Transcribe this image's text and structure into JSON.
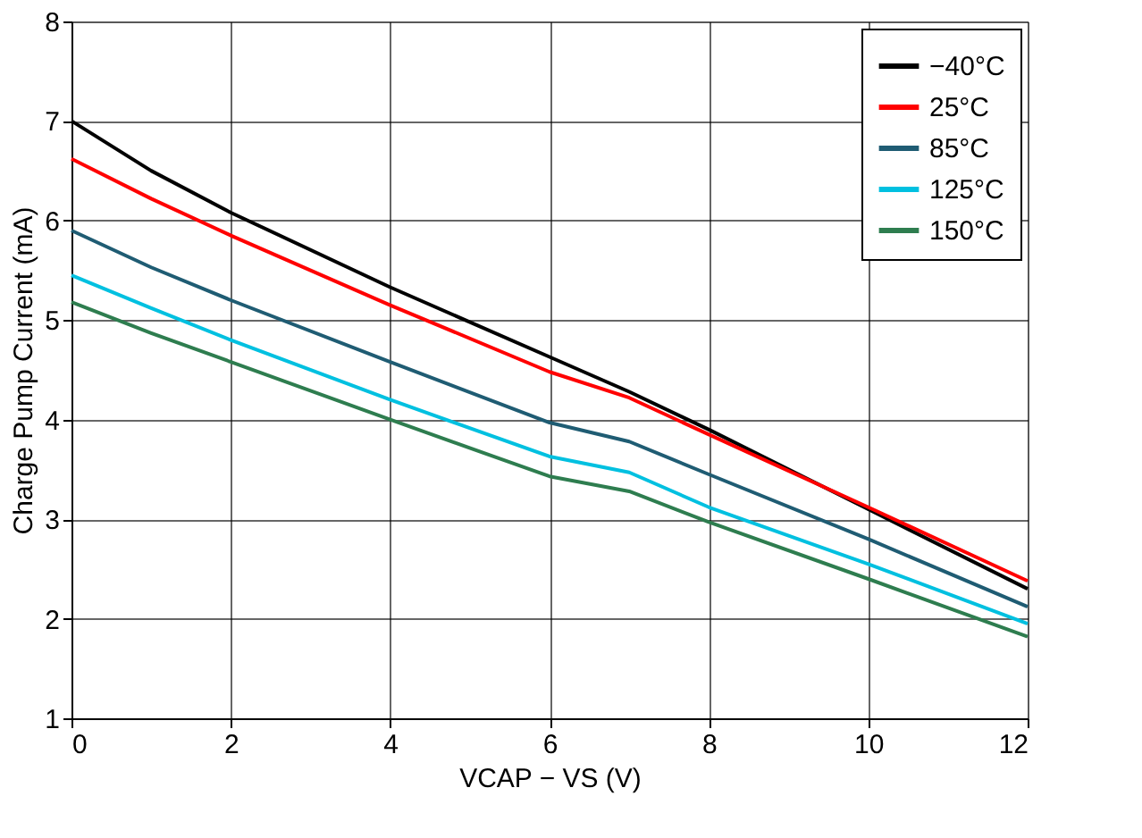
{
  "chart_data": {
    "type": "line",
    "xlabel": "VCAP − VS (V)",
    "ylabel": "Charge Pump Current (mA)",
    "x": [
      0,
      1,
      2,
      4,
      6,
      7,
      8,
      10,
      12
    ],
    "series": [
      {
        "name": "−40°C",
        "color": "#000000",
        "values": [
          7.0,
          6.5,
          6.08,
          5.33,
          4.63,
          4.28,
          3.9,
          3.1,
          2.3
        ]
      },
      {
        "name": "25°C",
        "color": "#ff0000",
        "values": [
          6.62,
          6.22,
          5.85,
          5.15,
          4.48,
          4.22,
          3.85,
          3.12,
          2.38
        ]
      },
      {
        "name": "85°C",
        "color": "#1f5c73",
        "values": [
          5.9,
          5.53,
          5.2,
          4.58,
          3.97,
          3.78,
          3.45,
          2.8,
          2.12
        ]
      },
      {
        "name": "125°C",
        "color": "#00c0e0",
        "values": [
          5.45,
          5.12,
          4.8,
          4.2,
          3.63,
          3.47,
          3.12,
          2.55,
          1.95
        ]
      },
      {
        "name": "150°C",
        "color": "#2e7d4f",
        "values": [
          5.18,
          4.87,
          4.58,
          4.0,
          3.43,
          3.28,
          2.97,
          2.4,
          1.82
        ]
      }
    ],
    "xlim": [
      0,
      12
    ],
    "xticks": [
      0,
      2,
      4,
      6,
      8,
      10,
      12
    ],
    "ylim": [
      1,
      8
    ],
    "yticks": [
      1,
      2,
      3,
      4,
      5,
      6,
      7,
      8
    ],
    "grid": true,
    "legend": "top right",
    "marker": "none",
    "line_style": "solid"
  }
}
